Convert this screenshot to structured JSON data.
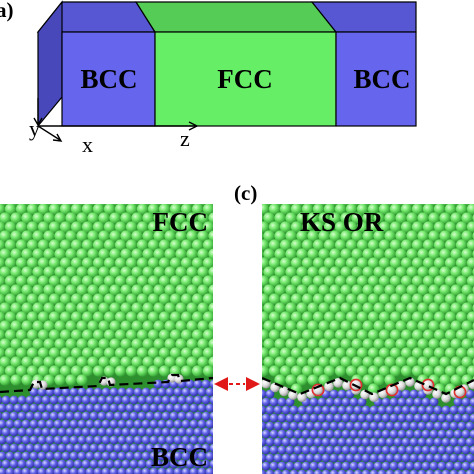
{
  "panel_a": {
    "label": "a)",
    "blocks": [
      {
        "name": "left",
        "label": "BCC",
        "color": "#6565ee"
      },
      {
        "name": "middle",
        "label": "FCC",
        "color": "#66ee66"
      },
      {
        "name": "right",
        "label": "BCC",
        "color": "#6565ee"
      }
    ],
    "axes": {
      "y": "y",
      "x": "x",
      "z": "z"
    }
  },
  "panel_b": {
    "top_label": "FCC",
    "bottom_label": "BCC",
    "colors": {
      "fcc": "#6ee06a",
      "bcc": "#5f61e6",
      "interface": "#dddddd"
    }
  },
  "panel_c": {
    "label": "(c)",
    "top_label": "KS OR",
    "colors": {
      "fcc": "#6ee06a",
      "bcc": "#5f61e6",
      "interface": "#dddddd",
      "marker": "#e03030"
    }
  },
  "colors": {
    "arrow": "#e01818",
    "outline": "#000000"
  }
}
